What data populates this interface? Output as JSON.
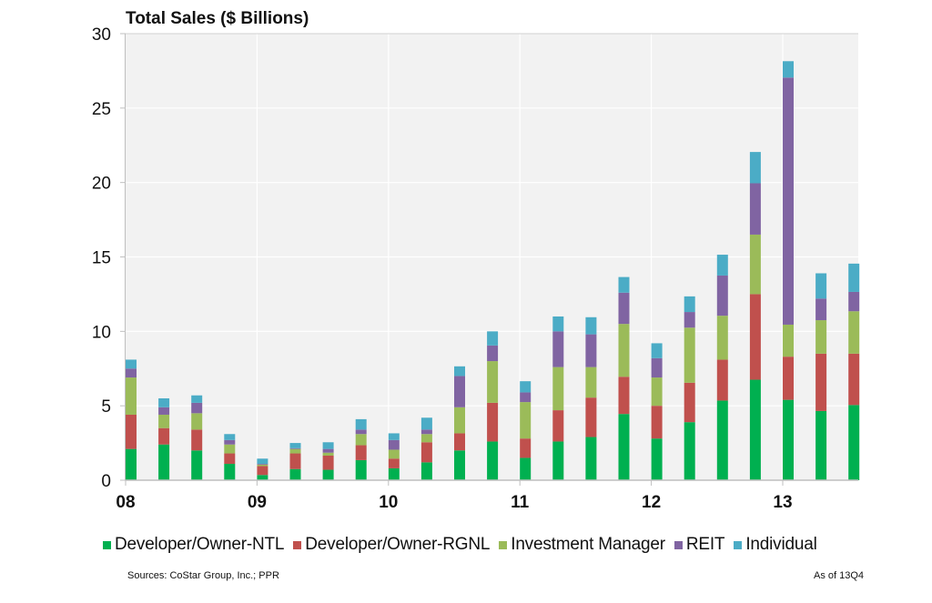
{
  "chart_data": {
    "type": "bar",
    "stacked": true,
    "title": "Total Sales ($ Billions)",
    "xlabel": "",
    "ylabel": "",
    "ylim": [
      0,
      30
    ],
    "yticks": [
      0,
      5,
      10,
      15,
      20,
      25,
      30
    ],
    "ytick_labels": [
      "0",
      "5",
      "10",
      "15",
      "20",
      "25",
      "30"
    ],
    "xtick_labels": [
      "08",
      "09",
      "10",
      "11",
      "12",
      "13"
    ],
    "grid": true,
    "legend_position": "bottom",
    "categories": [
      "08Q1",
      "08Q2",
      "08Q3",
      "08Q4",
      "09Q1",
      "09Q2",
      "09Q3",
      "09Q4",
      "10Q1",
      "10Q2",
      "10Q3",
      "10Q4",
      "11Q1",
      "11Q2",
      "11Q3",
      "11Q4",
      "12Q1",
      "12Q2",
      "12Q3",
      "12Q4",
      "13Q1",
      "13Q2",
      "13Q3"
    ],
    "series": [
      {
        "name": "Developer/Owner-NTL",
        "color": "#00b050",
        "values": [
          2.1,
          2.4,
          2.0,
          1.1,
          0.35,
          0.75,
          0.7,
          1.35,
          0.8,
          1.2,
          2.0,
          2.6,
          1.5,
          2.6,
          2.9,
          4.45,
          2.8,
          3.9,
          5.35,
          6.75,
          5.4,
          4.65,
          5.05
        ]
      },
      {
        "name": "Developer/Owner-RGNL",
        "color": "#c0504d",
        "values": [
          2.3,
          1.1,
          1.4,
          0.7,
          0.6,
          1.05,
          0.95,
          1.0,
          0.65,
          1.35,
          1.15,
          2.6,
          1.3,
          2.1,
          2.65,
          2.5,
          2.2,
          2.65,
          2.75,
          5.75,
          2.9,
          3.85,
          3.45
        ]
      },
      {
        "name": "Investment Manager",
        "color": "#9bbb59",
        "values": [
          2.5,
          0.9,
          1.1,
          0.6,
          0.1,
          0.3,
          0.2,
          0.75,
          0.6,
          0.55,
          1.75,
          2.8,
          2.45,
          2.9,
          2.05,
          3.55,
          1.9,
          3.7,
          2.95,
          4.0,
          2.15,
          2.25,
          2.85
        ]
      },
      {
        "name": "REIT",
        "color": "#8064a2",
        "values": [
          0.6,
          0.5,
          0.7,
          0.3,
          0.05,
          0.05,
          0.25,
          0.3,
          0.65,
          0.3,
          2.1,
          1.05,
          0.65,
          2.4,
          2.2,
          2.1,
          1.3,
          1.05,
          2.7,
          3.45,
          16.6,
          1.45,
          1.3
        ]
      },
      {
        "name": "Individual",
        "color": "#4bacc6",
        "values": [
          0.6,
          0.6,
          0.5,
          0.4,
          0.35,
          0.35,
          0.45,
          0.7,
          0.45,
          0.8,
          0.65,
          0.95,
          0.75,
          1.0,
          1.15,
          1.05,
          1.0,
          1.05,
          1.4,
          2.1,
          1.1,
          1.7,
          1.9
        ]
      }
    ]
  },
  "footer": {
    "sources": "Sources: CoStar Group, Inc.; PPR",
    "as_of": "As of 13Q4"
  }
}
